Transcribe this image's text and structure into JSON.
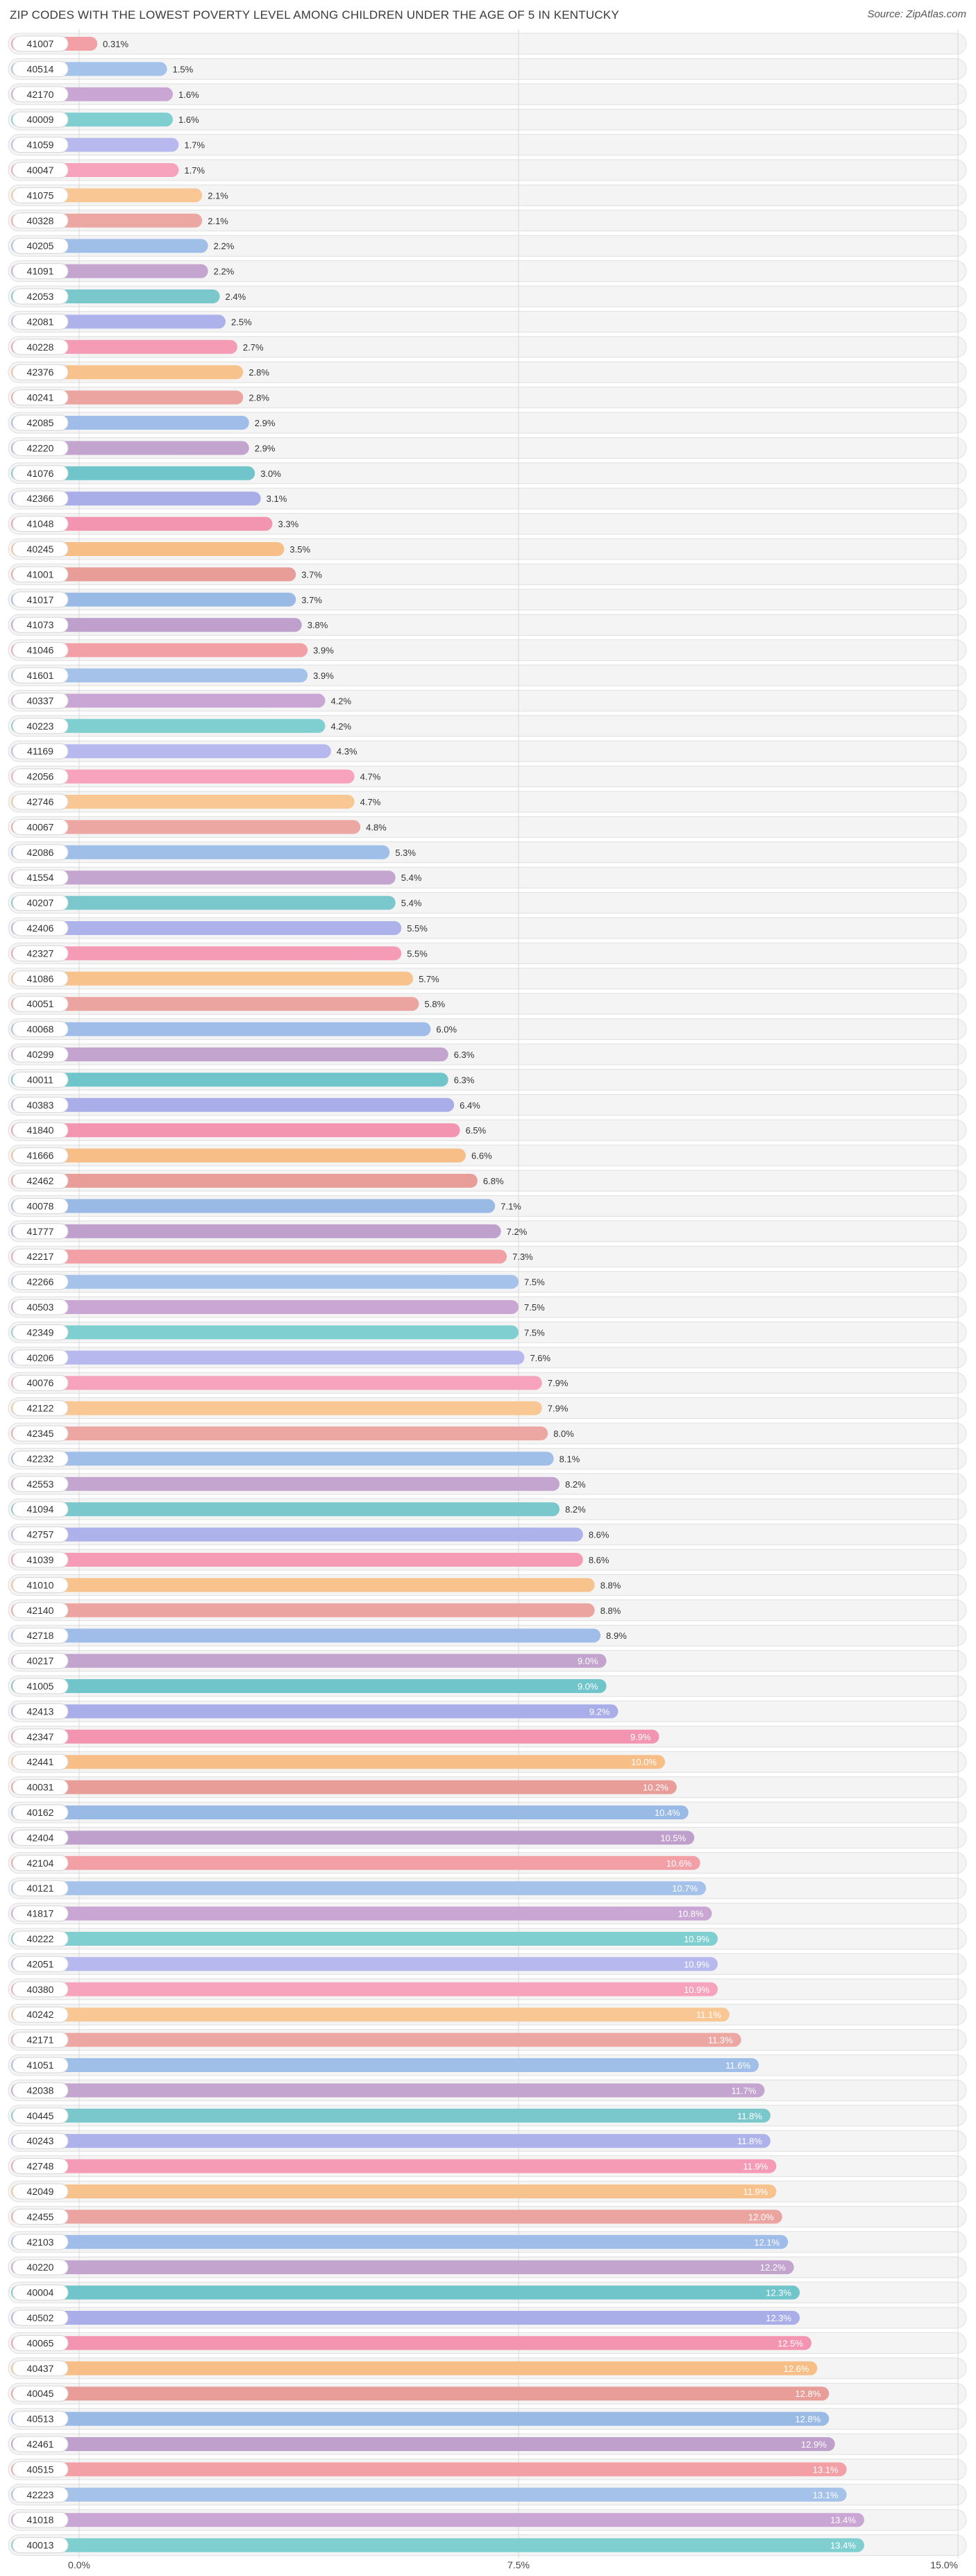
{
  "chart_data": {
    "type": "bar",
    "orientation": "horizontal",
    "title": "ZIP CODES WITH THE LOWEST POVERTY LEVEL AMONG CHILDREN UNDER THE AGE OF 5 IN KENTUCKY",
    "source": "Source: ZipAtlas.com",
    "xlim": [
      0,
      15
    ],
    "x_ticks": [
      0,
      7.5,
      15
    ],
    "x_tick_labels": [
      "0.0%",
      "7.5%",
      "15.0%"
    ],
    "grid": true,
    "categories": [
      "41007",
      "40514",
      "42170",
      "40009",
      "41059",
      "40047",
      "41075",
      "40328",
      "40205",
      "41091",
      "42053",
      "42081",
      "40228",
      "42376",
      "40241",
      "42085",
      "42220",
      "41076",
      "42366",
      "41048",
      "40245",
      "41001",
      "41017",
      "41073",
      "41046",
      "41601",
      "40337",
      "40223",
      "41169",
      "42056",
      "42746",
      "40067",
      "42086",
      "41554",
      "40207",
      "42406",
      "42327",
      "41086",
      "40051",
      "40068",
      "40299",
      "40011",
      "40383",
      "41840",
      "41666",
      "42462",
      "40078",
      "41777",
      "42217",
      "42266",
      "40503",
      "42349",
      "40206",
      "40076",
      "42122",
      "42345",
      "42232",
      "42553",
      "41094",
      "42757",
      "41039",
      "41010",
      "42140",
      "42718",
      "40217",
      "41005",
      "42413",
      "42347",
      "42441",
      "40031",
      "40162",
      "42404",
      "42104",
      "40121",
      "41817",
      "40222",
      "42051",
      "40380",
      "40242",
      "42171",
      "41051",
      "42038",
      "40445",
      "40243",
      "42748",
      "42049",
      "42455",
      "42103",
      "40220",
      "40004",
      "40502",
      "40065",
      "40437",
      "40045",
      "40513",
      "42461",
      "40515",
      "42223",
      "41018",
      "40013"
    ],
    "values": [
      0.31,
      1.5,
      1.6,
      1.6,
      1.7,
      1.7,
      2.1,
      2.1,
      2.2,
      2.2,
      2.4,
      2.5,
      2.7,
      2.8,
      2.8,
      2.9,
      2.9,
      3.0,
      3.1,
      3.3,
      3.5,
      3.7,
      3.7,
      3.8,
      3.9,
      3.9,
      4.2,
      4.2,
      4.3,
      4.7,
      4.7,
      4.8,
      5.3,
      5.4,
      5.4,
      5.5,
      5.5,
      5.7,
      5.8,
      6.0,
      6.3,
      6.3,
      6.4,
      6.5,
      6.6,
      6.8,
      7.1,
      7.2,
      7.3,
      7.5,
      7.5,
      7.5,
      7.6,
      7.9,
      7.9,
      8.0,
      8.1,
      8.2,
      8.2,
      8.6,
      8.6,
      8.8,
      8.8,
      8.9,
      9.0,
      9.0,
      9.2,
      9.9,
      10.0,
      10.2,
      10.4,
      10.5,
      10.6,
      10.7,
      10.8,
      10.9,
      10.9,
      10.9,
      11.1,
      11.3,
      11.6,
      11.7,
      11.8,
      11.8,
      11.9,
      11.9,
      12.0,
      12.1,
      12.2,
      12.3,
      12.3,
      12.5,
      12.6,
      12.8,
      12.8,
      12.9,
      13.1,
      13.1,
      13.4,
      13.4
    ],
    "value_labels": [
      "0.31%",
      "1.5%",
      "1.6%",
      "1.6%",
      "1.7%",
      "1.7%",
      "2.1%",
      "2.1%",
      "2.2%",
      "2.2%",
      "2.4%",
      "2.5%",
      "2.7%",
      "2.8%",
      "2.8%",
      "2.9%",
      "2.9%",
      "3.0%",
      "3.1%",
      "3.3%",
      "3.5%",
      "3.7%",
      "3.7%",
      "3.8%",
      "3.9%",
      "3.9%",
      "4.2%",
      "4.2%",
      "4.3%",
      "4.7%",
      "4.7%",
      "4.8%",
      "5.3%",
      "5.4%",
      "5.4%",
      "5.5%",
      "5.5%",
      "5.7%",
      "5.8%",
      "6.0%",
      "6.3%",
      "6.3%",
      "6.4%",
      "6.5%",
      "6.6%",
      "6.8%",
      "7.1%",
      "7.2%",
      "7.3%",
      "7.5%",
      "7.5%",
      "7.5%",
      "7.6%",
      "7.9%",
      "7.9%",
      "8.0%",
      "8.1%",
      "8.2%",
      "8.2%",
      "8.6%",
      "8.6%",
      "8.8%",
      "8.8%",
      "8.9%",
      "9.0%",
      "9.0%",
      "9.2%",
      "9.9%",
      "10.0%",
      "10.2%",
      "10.4%",
      "10.5%",
      "10.6%",
      "10.7%",
      "10.8%",
      "10.9%",
      "10.9%",
      "10.9%",
      "11.1%",
      "11.3%",
      "11.6%",
      "11.7%",
      "11.8%",
      "11.8%",
      "11.9%",
      "11.9%",
      "12.0%",
      "12.1%",
      "12.2%",
      "12.3%",
      "12.3%",
      "12.5%",
      "12.6%",
      "12.8%",
      "12.8%",
      "12.9%",
      "13.1%",
      "13.1%",
      "13.4%",
      "13.4%"
    ],
    "palette": [
      "#f2a0a6",
      "#a5c2ea",
      "#c9a6d4",
      "#7fcfd1",
      "#b7b8ee",
      "#f7a3bd",
      "#f8c793",
      "#eca7a3",
      "#9fbfe9",
      "#c3a5d0",
      "#7ac8cc",
      "#aeb2ea",
      "#f59bb6",
      "#f7c28c",
      "#eba4a0",
      "#9fbde8",
      "#c2a4cf",
      "#6fc5c9",
      "#a9aee9",
      "#f394b1",
      "#f7bf87",
      "#e89d99",
      "#9abae6",
      "#bf9fcc"
    ]
  }
}
